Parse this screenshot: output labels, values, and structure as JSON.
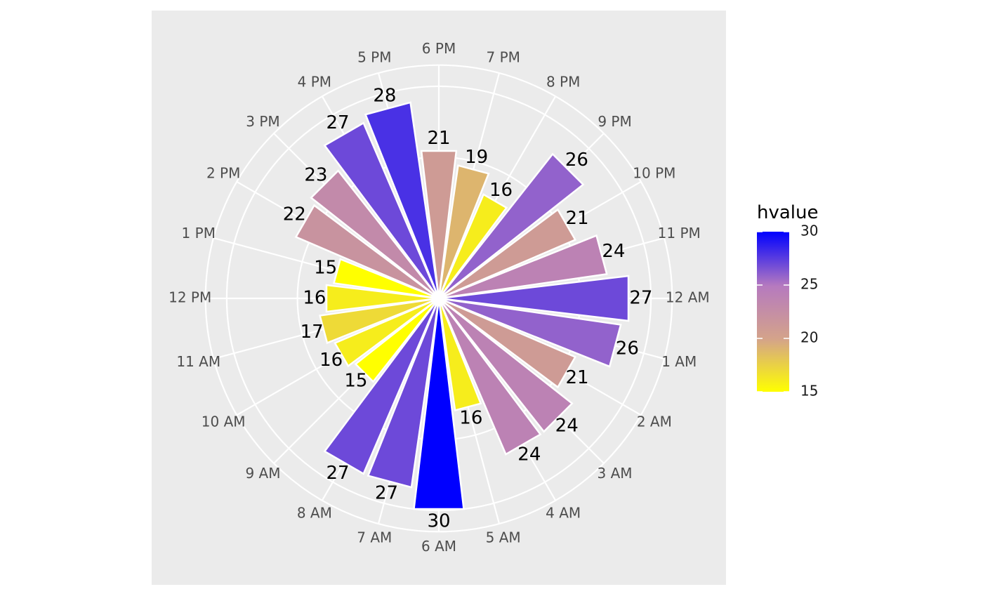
{
  "chart_data": {
    "type": "bar",
    "coordinate_system": "polar",
    "categories": [
      "12 AM",
      "1 AM",
      "2 AM",
      "3 AM",
      "4 AM",
      "5 AM",
      "6 AM",
      "7 AM",
      "8 AM",
      "9 AM",
      "10 AM",
      "11 AM",
      "12 PM",
      "1 PM",
      "2 PM",
      "3 PM",
      "4 PM",
      "5 PM",
      "6 PM",
      "7 PM",
      "8 PM",
      "9 PM",
      "10 PM",
      "11 PM"
    ],
    "values": [
      27,
      26,
      21,
      24,
      24,
      16,
      30,
      27,
      27,
      15,
      16,
      17,
      16,
      15,
      22,
      23,
      27,
      28,
      21,
      19,
      16,
      26,
      21,
      24
    ],
    "value_labels": [
      "27",
      "26",
      "21",
      "24",
      "24",
      "16",
      "30",
      "27",
      "27",
      "15",
      "16",
      "17",
      "16",
      "15",
      "22",
      "23",
      "27",
      "28",
      "21",
      "19",
      "16",
      "26",
      "21",
      "24"
    ],
    "fill_variable": "hvalue",
    "legend": {
      "title": "hvalue",
      "position": "right",
      "breaks": [
        "30",
        "25",
        "20",
        "15"
      ],
      "range": [
        15,
        30
      ],
      "colors": [
        "#FFFF00",
        "#D4A38A",
        "#B67ABF",
        "#0000FF"
      ]
    },
    "title": "",
    "xlabel": "",
    "ylabel": "",
    "ylim": [
      0,
      33
    ],
    "grid": true
  }
}
